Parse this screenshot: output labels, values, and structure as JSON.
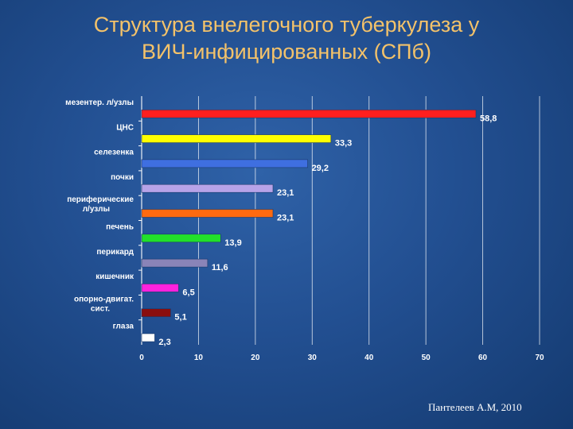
{
  "slide": {
    "title_line1": "Структура внелегочного туберкулеза у",
    "title_line2": "ВИЧ-инфицированных (СПб)",
    "author": "Пантелеев А.М, 2010"
  },
  "colors": {
    "title": "#f3c26a",
    "background": "#224f91",
    "grid": "#ffffff",
    "labels": "#ffffff"
  },
  "chart_data": {
    "type": "bar",
    "orientation": "horizontal",
    "title": "",
    "xlabel": "",
    "ylabel": "",
    "xlim": [
      0,
      70
    ],
    "ticks": [
      0,
      10,
      20,
      30,
      40,
      50,
      60,
      70
    ],
    "grid": true,
    "legend": "none",
    "bars": [
      {
        "label": "мезентер. л/узлы",
        "value": 58.8,
        "value_label": "58,8",
        "color": "#ff1f1f"
      },
      {
        "label": "ЦНС",
        "value": 33.3,
        "value_label": "33,3",
        "color": "#ffff00"
      },
      {
        "label": "селезенка",
        "value": 29.2,
        "value_label": "29,2",
        "color": "#3f6fe0"
      },
      {
        "label": "почки",
        "value": 23.1,
        "value_label": "23,1",
        "color": "#b7a3e8"
      },
      {
        "label": "периферические л/узлы",
        "value": 23.1,
        "value_label": "23,1",
        "color": "#ff6a10"
      },
      {
        "label": "печень",
        "value": 13.9,
        "value_label": "13,9",
        "color": "#22e02a"
      },
      {
        "label": "перикард",
        "value": 11.6,
        "value_label": "11,6",
        "color": "#8a84b8"
      },
      {
        "label": "кишечник",
        "value": 6.5,
        "value_label": "6,5",
        "color": "#ff22dd"
      },
      {
        "label": "опорно-двигат. сист.",
        "value": 5.1,
        "value_label": "5,1",
        "color": "#8a0e0e"
      },
      {
        "label": "глаза",
        "value": 2.3,
        "value_label": "2,3",
        "color": "#ffffff"
      }
    ]
  }
}
